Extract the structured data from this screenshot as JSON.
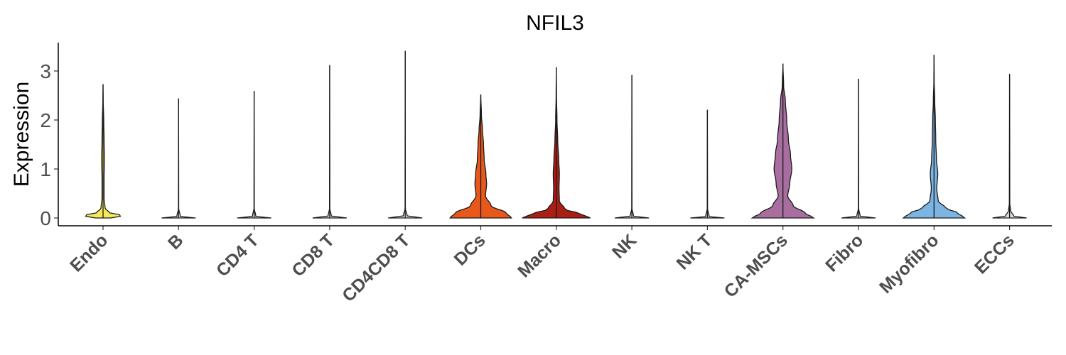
{
  "chart_data": {
    "type": "violin",
    "title": "NFIL3",
    "xlabel": "",
    "ylabel": "Expression",
    "ylim": [
      -0.15,
      3.6
    ],
    "yticks": [
      0,
      1,
      2,
      3
    ],
    "grid": false,
    "legend": "none",
    "categories": [
      {
        "name": "Endo",
        "color": "#f5e85a",
        "max": 2.73,
        "profile": [
          [
            0,
            0.22
          ],
          [
            0.05,
            0.6
          ],
          [
            0.1,
            0.2
          ],
          [
            0.2,
            0.06
          ],
          [
            0.4,
            0.03
          ],
          [
            0.8,
            0.03
          ],
          [
            1.2,
            0.04
          ],
          [
            1.6,
            0.03
          ],
          [
            2.0,
            0.02
          ],
          [
            2.4,
            0.005
          ],
          [
            2.73,
            0
          ]
        ]
      },
      {
        "name": "B",
        "color": "#dcdcdc",
        "max": 2.44,
        "profile": [
          [
            0,
            0.5
          ],
          [
            0.03,
            0.05
          ],
          [
            0.2,
            0.004
          ],
          [
            2.44,
            0
          ]
        ]
      },
      {
        "name": "CD4 T",
        "color": "#dcdcdc",
        "max": 2.59,
        "profile": [
          [
            0,
            0.5
          ],
          [
            0.03,
            0.05
          ],
          [
            0.2,
            0.004
          ],
          [
            2.59,
            0
          ]
        ]
      },
      {
        "name": "CD8 T",
        "color": "#dcdcdc",
        "max": 3.12,
        "profile": [
          [
            0,
            0.5
          ],
          [
            0.03,
            0.05
          ],
          [
            0.2,
            0.004
          ],
          [
            3.12,
            0
          ]
        ]
      },
      {
        "name": "CD4CD8 T",
        "color": "#dcdcdc",
        "max": 3.41,
        "profile": [
          [
            0,
            0.5
          ],
          [
            0.03,
            0.06
          ],
          [
            0.2,
            0.004
          ],
          [
            3.41,
            0
          ]
        ]
      },
      {
        "name": "DCs",
        "color": "#e8581a",
        "max": 2.52,
        "profile": [
          [
            0,
            0.9
          ],
          [
            0.1,
            0.75
          ],
          [
            0.25,
            0.3
          ],
          [
            0.45,
            0.14
          ],
          [
            0.7,
            0.17
          ],
          [
            0.9,
            0.15
          ],
          [
            1.2,
            0.1
          ],
          [
            1.5,
            0.08
          ],
          [
            1.8,
            0.05
          ],
          [
            2.1,
            0.02
          ],
          [
            2.52,
            0
          ]
        ]
      },
      {
        "name": "Macro",
        "color": "#aa1e14",
        "max": 3.08,
        "profile": [
          [
            0,
            1
          ],
          [
            0.08,
            0.72
          ],
          [
            0.18,
            0.25
          ],
          [
            0.35,
            0.09
          ],
          [
            0.6,
            0.08
          ],
          [
            0.9,
            0.09
          ],
          [
            1.2,
            0.07
          ],
          [
            1.6,
            0.04
          ],
          [
            2.0,
            0.02
          ],
          [
            2.5,
            0.006
          ],
          [
            3.08,
            0
          ]
        ]
      },
      {
        "name": "NK",
        "color": "#dcdcdc",
        "max": 2.92,
        "profile": [
          [
            0,
            0.5
          ],
          [
            0.03,
            0.05
          ],
          [
            0.2,
            0.004
          ],
          [
            2.92,
            0
          ]
        ]
      },
      {
        "name": "NK T",
        "color": "#dcdcdc",
        "max": 2.21,
        "profile": [
          [
            0,
            0.5
          ],
          [
            0.03,
            0.05
          ],
          [
            0.2,
            0.004
          ],
          [
            2.21,
            0
          ]
        ]
      },
      {
        "name": "CA-MSCs",
        "color": "#a86ea0",
        "max": 3.15,
        "profile": [
          [
            0,
            0.9
          ],
          [
            0.1,
            0.65
          ],
          [
            0.25,
            0.3
          ],
          [
            0.45,
            0.14
          ],
          [
            0.7,
            0.2
          ],
          [
            1.0,
            0.26
          ],
          [
            1.3,
            0.22
          ],
          [
            1.6,
            0.16
          ],
          [
            2.0,
            0.11
          ],
          [
            2.4,
            0.07
          ],
          [
            2.7,
            0.02
          ],
          [
            3.15,
            0
          ]
        ]
      },
      {
        "name": "Fibro",
        "color": "#dcdcdc",
        "max": 2.84,
        "profile": [
          [
            0,
            0.5
          ],
          [
            0.03,
            0.05
          ],
          [
            0.2,
            0.004
          ],
          [
            2.84,
            0
          ]
        ]
      },
      {
        "name": "Myofibro",
        "color": "#7cb4e2",
        "max": 3.33,
        "profile": [
          [
            0,
            0.9
          ],
          [
            0.1,
            0.7
          ],
          [
            0.2,
            0.35
          ],
          [
            0.35,
            0.12
          ],
          [
            0.6,
            0.08
          ],
          [
            0.9,
            0.11
          ],
          [
            1.2,
            0.07
          ],
          [
            1.6,
            0.05
          ],
          [
            2.0,
            0.04
          ],
          [
            2.4,
            0.02
          ],
          [
            2.8,
            0.005
          ],
          [
            3.33,
            0
          ]
        ]
      },
      {
        "name": "ECCs",
        "color": "#dcdcdc",
        "max": 2.94,
        "profile": [
          [
            0,
            0.5
          ],
          [
            0.04,
            0.12
          ],
          [
            0.15,
            0.03
          ],
          [
            0.3,
            0.006
          ],
          [
            2.94,
            0
          ]
        ]
      }
    ]
  }
}
